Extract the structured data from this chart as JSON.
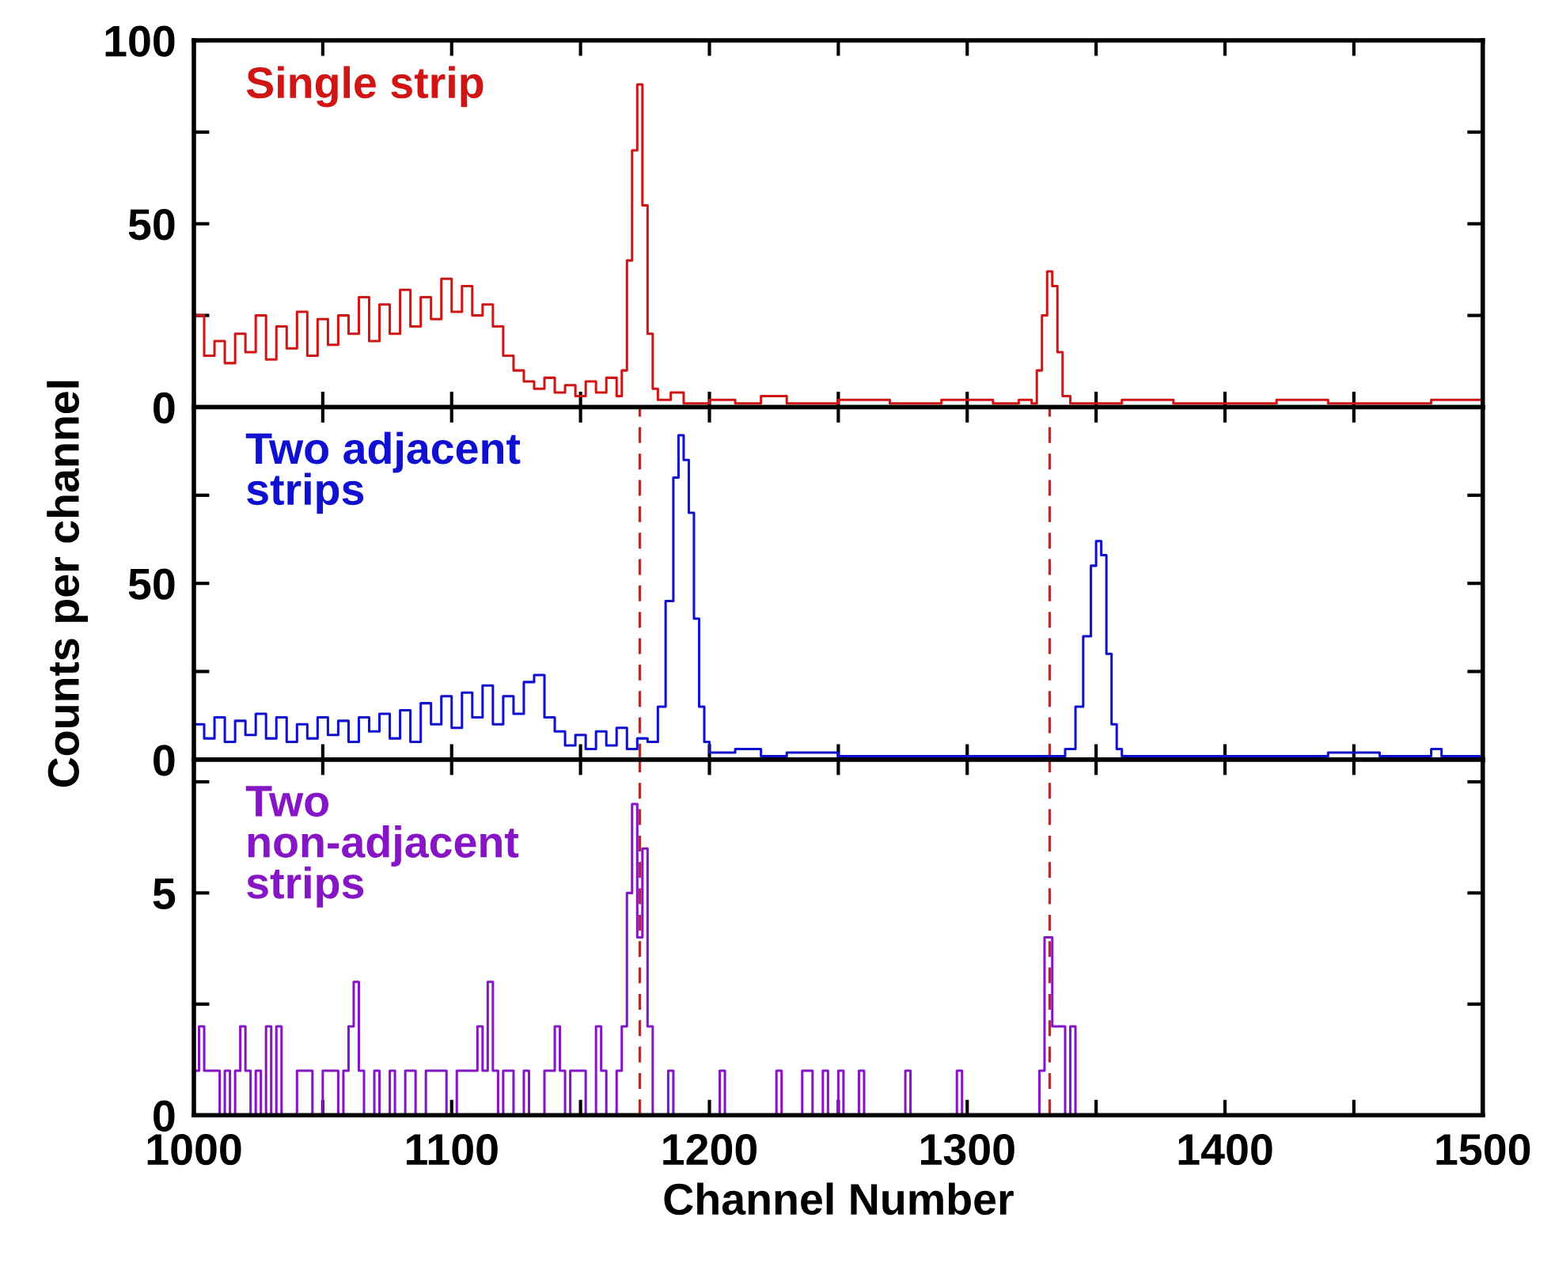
{
  "chart_data": [
    {
      "type": "step",
      "tick_labels": "y",
      "legend": false,
      "grid": false,
      "xlim": [
        1000,
        1500
      ],
      "xticks": [
        1000,
        {
          "value": 1050,
          "label": null
        },
        1100,
        {
          "value": 1150,
          "label": null
        },
        1200,
        {
          "value": 1250,
          "label": null
        },
        1300,
        {
          "value": 1350,
          "label": null
        },
        1400,
        {
          "value": 1450,
          "label": null
        },
        1500
      ],
      "ylim": [
        0,
        100
      ],
      "yticks": [
        0,
        {
          "value": 25,
          "label": null
        },
        50,
        {
          "value": 75,
          "label": null
        },
        100
      ],
      "series": [
        {
          "name": "Single strip",
          "color": "#d01515",
          "x": [
            1000,
            1004,
            1008,
            1012,
            1016,
            1020,
            1024,
            1028,
            1032,
            1036,
            1040,
            1044,
            1048,
            1052,
            1056,
            1060,
            1064,
            1068,
            1072,
            1076,
            1080,
            1084,
            1088,
            1092,
            1096,
            1100,
            1104,
            1108,
            1112,
            1116,
            1120,
            1124,
            1128,
            1132,
            1136,
            1140,
            1144,
            1148,
            1152,
            1156,
            1160,
            1164,
            1166,
            1168,
            1170,
            1172,
            1174,
            1176,
            1178,
            1180,
            1185,
            1190,
            1200,
            1210,
            1220,
            1230,
            1250,
            1270,
            1290,
            1310,
            1320,
            1325,
            1327,
            1329,
            1331,
            1333,
            1335,
            1337,
            1340,
            1360,
            1380,
            1400,
            1420,
            1440,
            1460,
            1480,
            1500
          ],
          "values": [
            25,
            14,
            18,
            12,
            20,
            15,
            25,
            13,
            22,
            16,
            26,
            14,
            24,
            17,
            25,
            20,
            30,
            18,
            28,
            20,
            32,
            22,
            30,
            24,
            35,
            26,
            33,
            25,
            28,
            22,
            14,
            10,
            7,
            5,
            8,
            4,
            6,
            3,
            7,
            4,
            8,
            3,
            10,
            40,
            70,
            88,
            55,
            20,
            5,
            2,
            4,
            1,
            2,
            1,
            3,
            1,
            2,
            1,
            2,
            1,
            2,
            1,
            10,
            25,
            37,
            33,
            15,
            3,
            1,
            2,
            1,
            1,
            2,
            1,
            1,
            2,
            1
          ]
        }
      ]
    },
    {
      "type": "step",
      "tick_labels": "y",
      "legend": false,
      "grid": false,
      "ylabel": "Counts per channel",
      "xlim": [
        1000,
        1500
      ],
      "xticks": [
        1000,
        {
          "value": 1050,
          "label": null
        },
        1100,
        {
          "value": 1150,
          "label": null
        },
        1200,
        {
          "value": 1250,
          "label": null
        },
        1300,
        {
          "value": 1350,
          "label": null
        },
        1400,
        {
          "value": 1450,
          "label": null
        },
        1500
      ],
      "ylim": [
        0,
        100
      ],
      "yticks": [
        0,
        {
          "value": 25,
          "label": null
        },
        50,
        {
          "value": 75,
          "label": null
        },
        {
          "value": 100,
          "label": null
        }
      ],
      "ref_lines": [
        {
          "axis": "x",
          "value": 1173,
          "color": "#d02020",
          "line_style": "dashed"
        },
        {
          "axis": "x",
          "value": 1332,
          "color": "#d02020",
          "line_style": "dashed"
        }
      ],
      "series": [
        {
          "name": "Two adjacent\nstrips",
          "color": "#1010d0",
          "x": [
            1000,
            1004,
            1008,
            1012,
            1016,
            1020,
            1024,
            1028,
            1032,
            1036,
            1040,
            1044,
            1048,
            1052,
            1056,
            1060,
            1064,
            1068,
            1072,
            1076,
            1080,
            1084,
            1088,
            1092,
            1096,
            1100,
            1104,
            1108,
            1112,
            1116,
            1120,
            1124,
            1128,
            1132,
            1136,
            1140,
            1144,
            1148,
            1152,
            1156,
            1160,
            1164,
            1168,
            1172,
            1176,
            1180,
            1183,
            1186,
            1188,
            1190,
            1192,
            1194,
            1196,
            1198,
            1200,
            1210,
            1220,
            1230,
            1250,
            1270,
            1300,
            1330,
            1338,
            1342,
            1345,
            1348,
            1350,
            1352,
            1354,
            1356,
            1358,
            1360,
            1400,
            1440,
            1460,
            1480,
            1484,
            1500
          ],
          "values": [
            10,
            6,
            12,
            5,
            11,
            7,
            13,
            6,
            12,
            5,
            10,
            6,
            12,
            7,
            11,
            5,
            12,
            8,
            13,
            6,
            14,
            5,
            16,
            10,
            18,
            9,
            19,
            12,
            21,
            10,
            18,
            13,
            22,
            24,
            12,
            8,
            4,
            7,
            3,
            8,
            4,
            9,
            3,
            6,
            5,
            15,
            45,
            80,
            92,
            85,
            70,
            40,
            15,
            5,
            2,
            3,
            1,
            2,
            1,
            1,
            1,
            1,
            3,
            15,
            35,
            55,
            62,
            58,
            30,
            10,
            3,
            1,
            1,
            2,
            1,
            3,
            1,
            1
          ]
        }
      ]
    },
    {
      "type": "step",
      "legend": false,
      "grid": false,
      "xlabel": "Channel Number",
      "xlim": [
        1000,
        1500
      ],
      "xticks": [
        1000,
        {
          "value": 1050,
          "label": null
        },
        1100,
        {
          "value": 1150,
          "label": null
        },
        1200,
        {
          "value": 1250,
          "label": null
        },
        1300,
        {
          "value": 1350,
          "label": null
        },
        1400,
        {
          "value": 1450,
          "label": null
        },
        1500
      ],
      "ylim": [
        0,
        8
      ],
      "yticks": [
        0,
        {
          "value": 2.5,
          "label": null
        },
        5,
        {
          "value": 7.5,
          "label": null
        }
      ],
      "ref_lines": [
        {
          "axis": "x",
          "value": 1173,
          "color": "#d02020",
          "line_style": "dashed"
        },
        {
          "axis": "x",
          "value": 1332,
          "color": "#d02020",
          "line_style": "dashed"
        }
      ],
      "series": [
        {
          "name": "Two\nnon-adjacent\nstrips",
          "color": "#8515c5",
          "x": [
            1000,
            1002,
            1004,
            1008,
            1010,
            1012,
            1014,
            1016,
            1018,
            1020,
            1022,
            1024,
            1026,
            1028,
            1030,
            1032,
            1034,
            1040,
            1044,
            1046,
            1050,
            1054,
            1056,
            1058,
            1060,
            1062,
            1064,
            1066,
            1070,
            1072,
            1076,
            1078,
            1082,
            1086,
            1090,
            1094,
            1098,
            1102,
            1110,
            1112,
            1114,
            1116,
            1118,
            1120,
            1124,
            1128,
            1130,
            1136,
            1140,
            1142,
            1144,
            1146,
            1150,
            1152,
            1156,
            1158,
            1160,
            1164,
            1166,
            1168,
            1170,
            1172,
            1174,
            1176,
            1178,
            1184,
            1186,
            1204,
            1206,
            1226,
            1228,
            1236,
            1240,
            1244,
            1246,
            1250,
            1252,
            1258,
            1260,
            1276,
            1278,
            1296,
            1298,
            1328,
            1330,
            1333,
            1336,
            1338,
            1340,
            1342,
            1500
          ],
          "values": [
            1,
            2,
            1,
            1,
            0,
            1,
            0,
            1,
            2,
            1,
            0,
            1,
            0,
            2,
            0,
            2,
            0,
            1,
            1,
            0,
            1,
            1,
            0,
            1,
            2,
            3,
            1,
            0,
            1,
            0,
            1,
            0,
            1,
            0,
            1,
            1,
            0,
            1,
            2,
            1,
            3,
            1,
            0,
            1,
            0,
            1,
            0,
            1,
            2,
            1,
            0,
            1,
            1,
            0,
            2,
            1,
            0,
            1,
            2,
            5,
            7,
            4,
            6,
            2,
            0,
            1,
            0,
            1,
            0,
            1,
            0,
            1,
            0,
            1,
            0,
            1,
            0,
            1,
            0,
            1,
            0,
            1,
            0,
            1,
            4,
            2,
            2,
            0,
            2,
            0,
            0
          ]
        }
      ]
    }
  ]
}
